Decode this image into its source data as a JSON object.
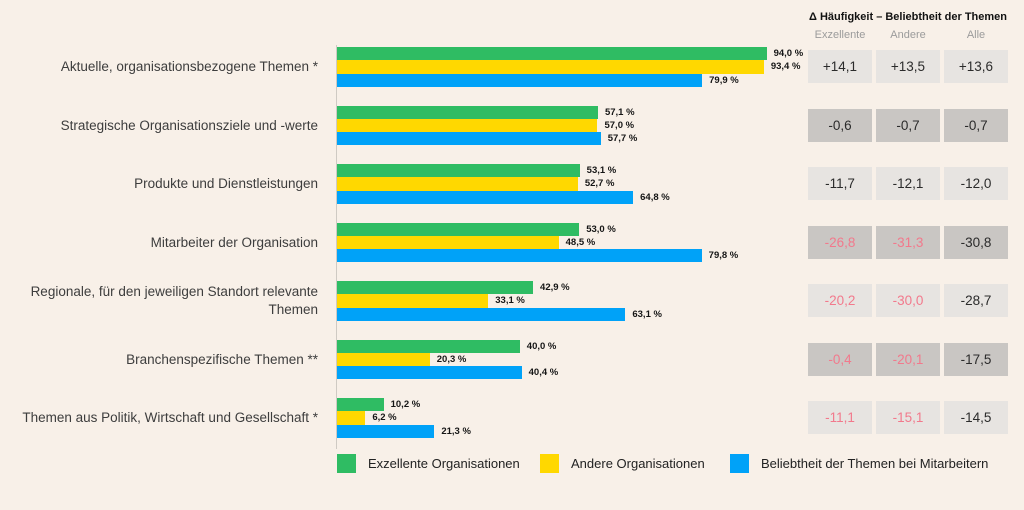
{
  "colors": {
    "bg": "#f8f0e8",
    "green": "#2fbc63",
    "yellow": "#ffd800",
    "blue": "#00a2f8",
    "pink": "#f2798c",
    "cell_light": "#e7e4e1",
    "cell_dark": "#c9c6c3"
  },
  "table": {
    "title": "Δ Häufigkeit – Beliebtheit der Themen",
    "columns": [
      "Exzellente",
      "Andere",
      "Alle"
    ]
  },
  "legend": [
    {
      "label": "Exzellente Organisationen",
      "color": "#2fbc63"
    },
    {
      "label": "Andere Organisationen",
      "color": "#ffd800"
    },
    {
      "label": "Beliebtheit der Themen bei Mitarbeitern",
      "color": "#00a2f8"
    }
  ],
  "chart_data": {
    "type": "bar",
    "orientation": "horizontal",
    "unit": "%",
    "xlim": [
      0,
      100
    ],
    "grid": false,
    "series_names": [
      "Exzellente Organisationen",
      "Andere Organisationen",
      "Beliebtheit der Themen bei Mitarbeitern"
    ],
    "groups": [
      {
        "label": "Aktuelle, organisationsbezogene Themen *",
        "values": [
          94.0,
          93.4,
          79.9
        ],
        "value_labels": [
          "94,0 %",
          "93,4 %",
          "79,9 %"
        ],
        "deltas": [
          {
            "text": "+14,1",
            "accent": "dark"
          },
          {
            "text": "+13,5",
            "accent": "dark"
          },
          {
            "text": "+13,6",
            "accent": "dark"
          }
        ]
      },
      {
        "label": "Strategische Organisationsziele und -werte",
        "values": [
          57.1,
          57.0,
          57.7
        ],
        "value_labels": [
          "57,1 %",
          "57,0 %",
          "57,7 %"
        ],
        "deltas": [
          {
            "text": "-0,6",
            "accent": "dark"
          },
          {
            "text": "-0,7",
            "accent": "dark"
          },
          {
            "text": "-0,7",
            "accent": "dark"
          }
        ]
      },
      {
        "label": "Produkte und Dienstleistungen",
        "values": [
          53.1,
          52.7,
          64.8
        ],
        "value_labels": [
          "53,1 %",
          "52,7 %",
          "64,8 %"
        ],
        "deltas": [
          {
            "text": "-11,7",
            "accent": "dark"
          },
          {
            "text": "-12,1",
            "accent": "dark"
          },
          {
            "text": "-12,0",
            "accent": "dark"
          }
        ]
      },
      {
        "label": "Mitarbeiter der Organisation",
        "values": [
          53.0,
          48.5,
          79.8
        ],
        "value_labels": [
          "53,0 %",
          "48,5 %",
          "79,8 %"
        ],
        "deltas": [
          {
            "text": "-26,8",
            "accent": "pink"
          },
          {
            "text": "-31,3",
            "accent": "pink"
          },
          {
            "text": "-30,8",
            "accent": "dark"
          }
        ]
      },
      {
        "label": "Regionale, für den jeweiligen Standort relevante Themen",
        "values": [
          42.9,
          33.1,
          63.1
        ],
        "value_labels": [
          "42,9 %",
          "33,1 %",
          "63,1 %"
        ],
        "deltas": [
          {
            "text": "-20,2",
            "accent": "pink"
          },
          {
            "text": "-30,0",
            "accent": "pink"
          },
          {
            "text": "-28,7",
            "accent": "dark"
          }
        ]
      },
      {
        "label": "Branchenspezifische Themen **",
        "values": [
          40.0,
          20.3,
          40.4
        ],
        "value_labels": [
          "40,0 %",
          "20,3 %",
          "40,4 %"
        ],
        "deltas": [
          {
            "text": "-0,4",
            "accent": "pink"
          },
          {
            "text": "-20,1",
            "accent": "pink"
          },
          {
            "text": "-17,5",
            "accent": "dark"
          }
        ]
      },
      {
        "label": "Themen aus Politik, Wirtschaft und Gesellschaft *",
        "values": [
          10.2,
          6.2,
          21.3
        ],
        "value_labels": [
          "10,2 %",
          "6,2 %",
          "21,3 %"
        ],
        "deltas": [
          {
            "text": "-11,1",
            "accent": "pink"
          },
          {
            "text": "-15,1",
            "accent": "pink"
          },
          {
            "text": "-14,5",
            "accent": "dark"
          }
        ]
      }
    ]
  }
}
